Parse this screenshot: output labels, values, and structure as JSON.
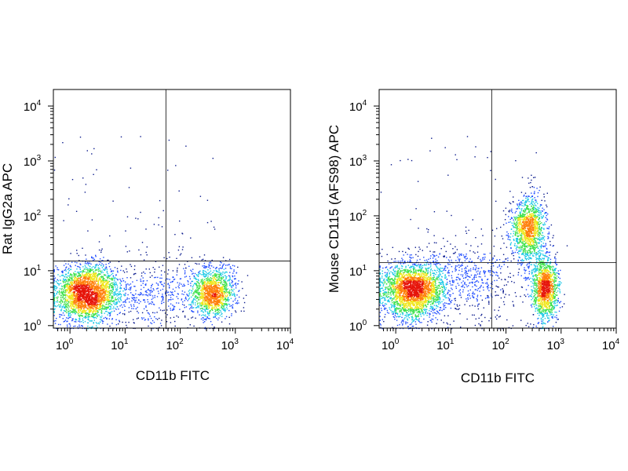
{
  "chart_data": [
    {
      "type": "scatter",
      "xlabel": "CD11b FITC",
      "ylabel": "Rat IgG2a APC",
      "x_scale": "log",
      "y_scale": "log",
      "xlim": [
        0.5,
        10000
      ],
      "ylim": [
        0.9,
        20000
      ],
      "x_ticks": [
        {
          "base": "10",
          "exp": "0",
          "value": 1
        },
        {
          "base": "10",
          "exp": "1",
          "value": 10
        },
        {
          "base": "10",
          "exp": "2",
          "value": 100
        },
        {
          "base": "10",
          "exp": "3",
          "value": 1000
        },
        {
          "base": "10",
          "exp": "4",
          "value": 10000
        }
      ],
      "y_ticks": [
        {
          "base": "10",
          "exp": "0",
          "value": 1
        },
        {
          "base": "10",
          "exp": "1",
          "value": 10
        },
        {
          "base": "10",
          "exp": "2",
          "value": 100
        },
        {
          "base": "10",
          "exp": "3",
          "value": 1000
        },
        {
          "base": "10",
          "exp": "4",
          "value": 10000
        }
      ],
      "quadrant_gate": {
        "x": 55,
        "y": 15
      },
      "populations": [
        {
          "center_x": 2,
          "center_y": 4,
          "spread_x_decades": 0.28,
          "spread_y_decades": 0.25,
          "density": "high"
        },
        {
          "center_x": 400,
          "center_y": 4,
          "spread_x_decades": 0.2,
          "spread_y_decades": 0.22,
          "density": "medium"
        },
        {
          "center_x": 30,
          "center_y": 4,
          "spread_x_decades": 0.6,
          "spread_y_decades": 0.3,
          "density": "low"
        }
      ],
      "grid": false,
      "colormap": [
        "#0a1a8c",
        "#1e4bff",
        "#19c8e6",
        "#3ce14b",
        "#f0e619",
        "#ff7f0a",
        "#e6140a"
      ]
    },
    {
      "type": "scatter",
      "xlabel": "CD11b FITC",
      "ylabel": "Mouse CD115 (AFS98) APC",
      "x_scale": "log",
      "y_scale": "log",
      "xlim": [
        0.5,
        10000
      ],
      "ylim": [
        0.9,
        20000
      ],
      "x_ticks": [
        {
          "base": "10",
          "exp": "0",
          "value": 1
        },
        {
          "base": "10",
          "exp": "1",
          "value": 10
        },
        {
          "base": "10",
          "exp": "2",
          "value": 100
        },
        {
          "base": "10",
          "exp": "3",
          "value": 1000
        },
        {
          "base": "10",
          "exp": "4",
          "value": 10000
        }
      ],
      "y_ticks": [
        {
          "base": "10",
          "exp": "0",
          "value": 1
        },
        {
          "base": "10",
          "exp": "1",
          "value": 10
        },
        {
          "base": "10",
          "exp": "2",
          "value": 100
        },
        {
          "base": "10",
          "exp": "3",
          "value": 1000
        },
        {
          "base": "10",
          "exp": "4",
          "value": 10000
        }
      ],
      "quadrant_gate": {
        "x": 55,
        "y": 14
      },
      "populations": [
        {
          "center_x": 2,
          "center_y": 4.5,
          "spread_x_decades": 0.28,
          "spread_y_decades": 0.25,
          "density": "high"
        },
        {
          "center_x": 250,
          "center_y": 60,
          "spread_x_decades": 0.15,
          "spread_y_decades": 0.3,
          "density": "medium"
        },
        {
          "center_x": 500,
          "center_y": 5,
          "spread_x_decades": 0.12,
          "spread_y_decades": 0.3,
          "density": "medium"
        },
        {
          "center_x": 20,
          "center_y": 8,
          "spread_x_decades": 0.5,
          "spread_y_decades": 0.35,
          "density": "low"
        }
      ],
      "grid": false,
      "colormap": [
        "#0a1a8c",
        "#1e4bff",
        "#19c8e6",
        "#3ce14b",
        "#f0e619",
        "#ff7f0a",
        "#e6140a"
      ]
    }
  ]
}
